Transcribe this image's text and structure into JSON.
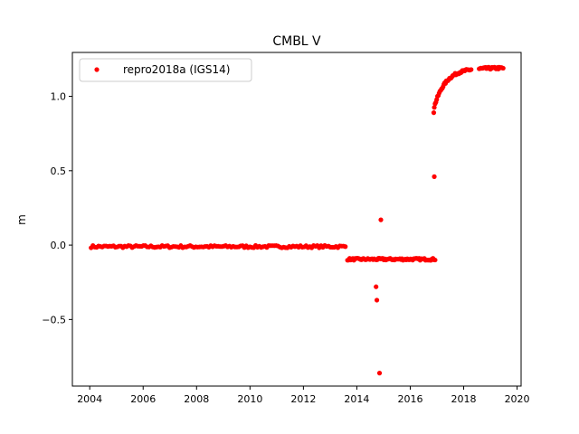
{
  "chart_data": {
    "type": "scatter",
    "title": "CMBL V",
    "xlabel": "",
    "ylabel": "m",
    "xlim": [
      2003.35,
      2020.15
    ],
    "ylim": [
      -0.9475,
      1.295
    ],
    "xticks": [
      2004,
      2006,
      2008,
      2010,
      2012,
      2014,
      2016,
      2018,
      2020
    ],
    "xtick_labels": [
      "2004",
      "2006",
      "2008",
      "2010",
      "2012",
      "2014",
      "2016",
      "2018",
      "2020"
    ],
    "yticks": [
      -0.5,
      0.0,
      0.5,
      1.0
    ],
    "ytick_labels": [
      "−0.5",
      "0.0",
      "0.5",
      "1.0"
    ],
    "grid": false,
    "legend_position": "top-left",
    "series": [
      {
        "name": "repro2018a (IGS14)",
        "color": "#ff0000",
        "marker": "circle",
        "segments": [
          {
            "x_start": 2004.05,
            "x_end": 2013.6,
            "step": 0.07,
            "y_mean": -0.01,
            "y_jitter": 0.008
          },
          {
            "x_start": 2013.65,
            "x_end": 2016.95,
            "step": 0.04,
            "y_mean": -0.095,
            "y_jitter": 0.007
          }
        ],
        "post_2016_curve": {
          "x_start": 2016.9,
          "x_end": 2019.5,
          "step": 0.03,
          "y_start": 0.93,
          "y_end": 1.19
        },
        "outliers": [
          {
            "x": 2014.72,
            "y": -0.28
          },
          {
            "x": 2014.75,
            "y": -0.37
          },
          {
            "x": 2014.85,
            "y": -0.86
          },
          {
            "x": 2014.9,
            "y": 0.17
          },
          {
            "x": 2016.9,
            "y": 0.46
          },
          {
            "x": 2016.88,
            "y": 0.89
          }
        ]
      }
    ]
  }
}
